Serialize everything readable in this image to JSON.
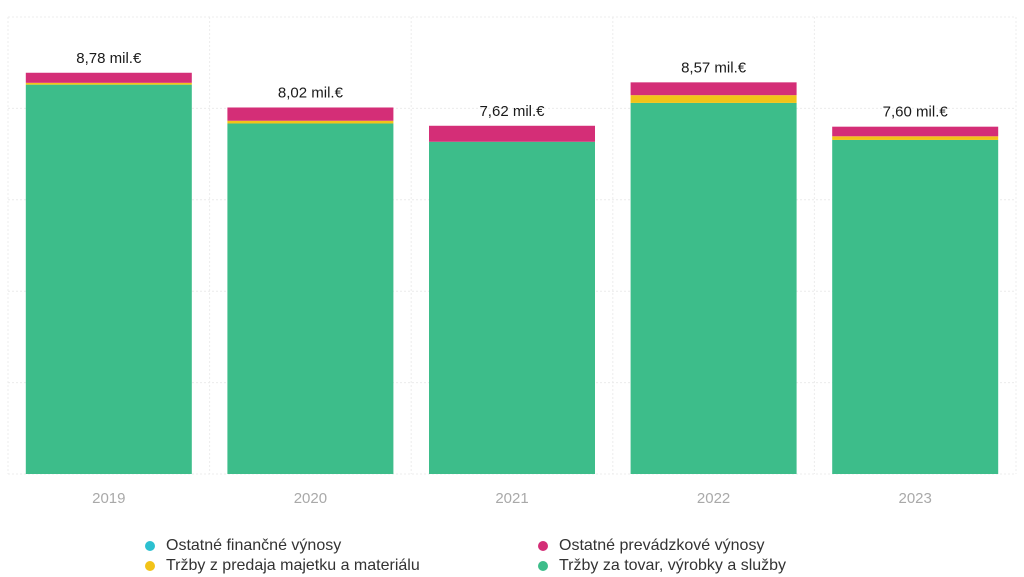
{
  "chart_data": {
    "type": "bar",
    "stacked": true,
    "categories": [
      "2019",
      "2020",
      "2021",
      "2022",
      "2023"
    ],
    "totals_labels": [
      "8,78 mil.€",
      "8,02 mil.€",
      "7,62 mil.€",
      "8,57 mil.€",
      "7,60 mil.€"
    ],
    "series": [
      {
        "name": "Tržby za tovar, výrobky a služby",
        "color": "#3dbd8a",
        "values": [
          8.52,
          7.67,
          7.27,
          8.12,
          7.31
        ]
      },
      {
        "name": "Tržby z predaja majetku a materiálu",
        "color": "#f2c318",
        "values": [
          0.04,
          0.06,
          0.0,
          0.17,
          0.08
        ]
      },
      {
        "name": "Ostatné prevádzkové výnosy",
        "color": "#d42e77",
        "values": [
          0.22,
          0.29,
          0.35,
          0.28,
          0.21
        ]
      },
      {
        "name": "Ostatné finančné výnosy",
        "color": "#2cc0d0",
        "values": [
          0.0,
          0.0,
          0.0,
          0.0,
          0.0
        ]
      }
    ],
    "legend_order": [
      "Ostatné finančné výnosy",
      "Ostatné prevádzkové výnosy",
      "Tržby z predaja majetku a materiálu",
      "Tržby za tovar, výrobky a služby"
    ],
    "ylim": [
      0,
      10
    ],
    "grid": true,
    "legend_position": "bottom"
  }
}
